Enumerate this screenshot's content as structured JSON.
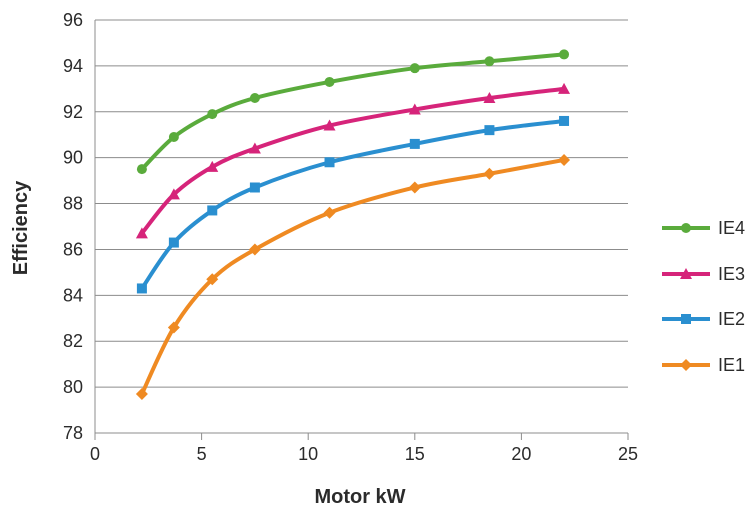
{
  "chart_data": {
    "type": "line",
    "title": "",
    "xlabel": "Motor kW",
    "ylabel": "Efficiency",
    "xlim": [
      0,
      25
    ],
    "ylim": [
      78,
      96
    ],
    "xticks": [
      0,
      5,
      10,
      15,
      20,
      25
    ],
    "yticks": [
      78,
      80,
      82,
      84,
      86,
      88,
      90,
      92,
      94,
      96
    ],
    "xtick_labels": [
      "0",
      "5",
      "10",
      "15",
      "20",
      "25"
    ],
    "ytick_labels": [
      "78",
      "80",
      "82",
      "84",
      "86",
      "88",
      "90",
      "92",
      "94",
      "96"
    ],
    "grid": "horizontal",
    "legend_position": "right",
    "x": [
      2.2,
      3.7,
      5.5,
      7.5,
      11,
      15,
      18.5,
      22
    ],
    "series": [
      {
        "name": "IE4",
        "marker": "circle",
        "color": "#5aab3c",
        "values": [
          89.5,
          90.9,
          91.9,
          92.6,
          93.3,
          93.9,
          94.2,
          94.5
        ]
      },
      {
        "name": "IE3",
        "marker": "triangle",
        "color": "#d6247a",
        "values": [
          86.7,
          88.4,
          89.6,
          90.4,
          91.4,
          92.1,
          92.6,
          93.0
        ]
      },
      {
        "name": "IE2",
        "marker": "square",
        "color": "#2a8fd0",
        "values": [
          84.3,
          86.3,
          87.7,
          88.7,
          89.8,
          90.6,
          91.2,
          91.6
        ]
      },
      {
        "name": "IE1",
        "marker": "diamond",
        "color": "#ef8a22",
        "values": [
          79.7,
          82.6,
          84.7,
          86.0,
          87.6,
          88.7,
          89.3,
          89.9
        ]
      }
    ]
  }
}
